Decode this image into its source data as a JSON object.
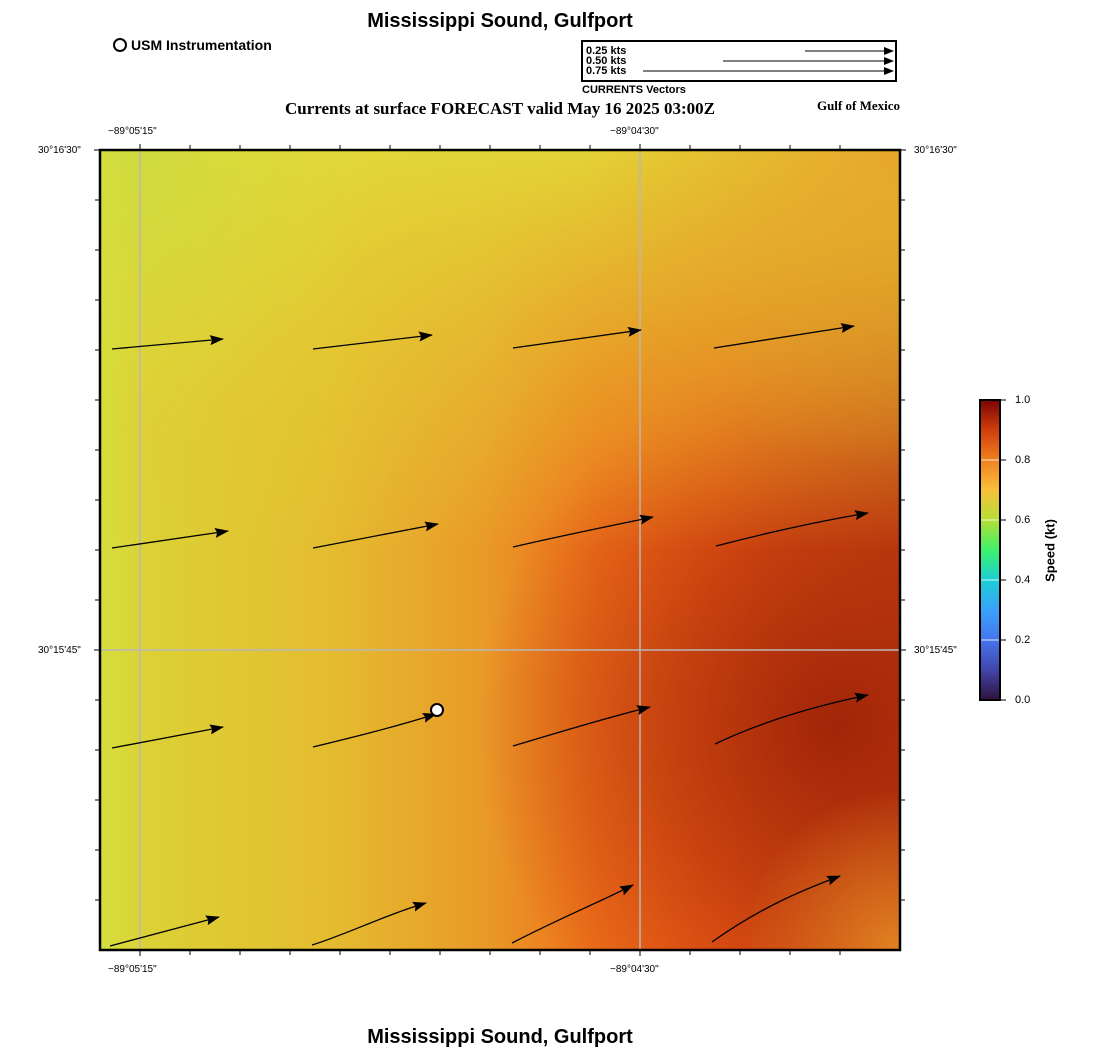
{
  "map": {
    "title_top": "Mississippi Sound, Gulfport",
    "title_bottom": "Mississippi Sound, Gulfport",
    "subtitle": "Currents at surface FORECAST valid May 16 2025 03:00Z",
    "region_label": "Gulf of Mexico",
    "station_legend": "USM Instrumentation",
    "vector_legend": {
      "caption": "CURRENTS Vectors",
      "entries": [
        "0.25 kts",
        "0.50 kts",
        "0.75 kts"
      ]
    },
    "axes": {
      "top_lon": [
        "−89°05'15\"",
        "−89°04'30\""
      ],
      "bottom_lon": [
        "−89°05'15\"",
        "−89°04'30\""
      ],
      "left_lat": [
        "30°16'30\"",
        "30°15'45\""
      ],
      "right_lat": [
        "30°16'30\"",
        "30°15'45\""
      ]
    },
    "colorbar": {
      "title": "Speed (kt)",
      "ticks": [
        "1.0",
        "0.8",
        "0.6",
        "0.4",
        "0.2",
        "0.0"
      ],
      "range": [
        0.0,
        1.0
      ]
    }
  }
}
